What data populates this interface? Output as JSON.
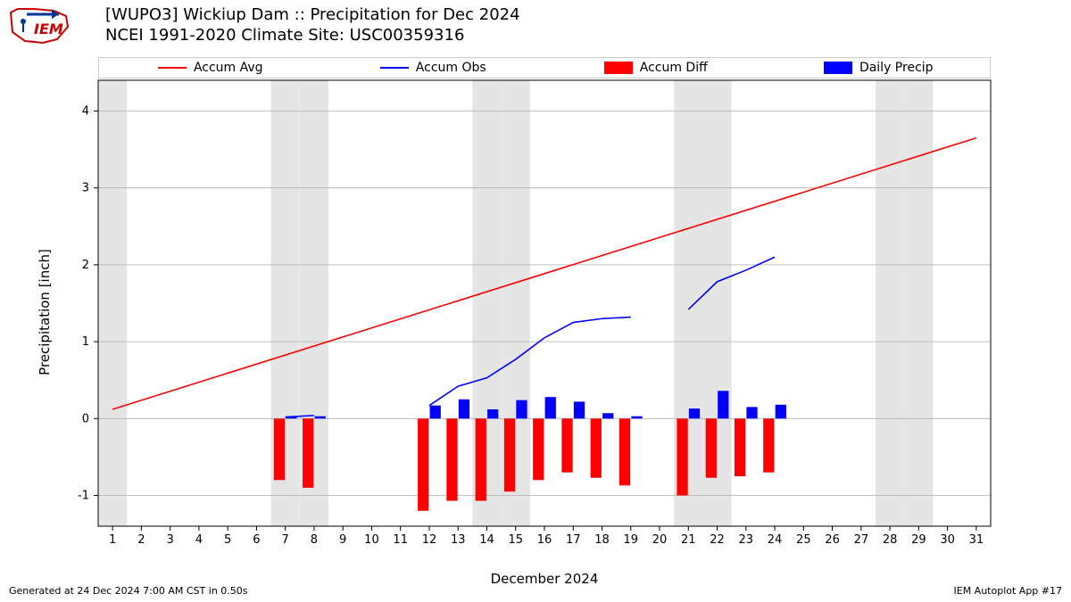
{
  "logo": {
    "text": "IEM",
    "color": "#cc0000"
  },
  "title_line1": "[WUPO3] Wickiup Dam :: Precipitation for Dec 2024",
  "title_line2": "NCEI 1991-2020 Climate Site: USC00359316",
  "footer_left": "Generated at 24 Dec 2024 7:00 AM CST in 0.50s",
  "footer_right": "IEM Autoplot App #17",
  "ylabel": "Precipitation [inch]",
  "xlabel": "December 2024",
  "legend": {
    "avg": {
      "label": "Accum Avg",
      "color": "#ff0000",
      "type": "line"
    },
    "obs": {
      "label": "Accum Obs",
      "color": "#0000ff",
      "type": "line"
    },
    "diff": {
      "label": "Accum Diff",
      "color": "#ff0000",
      "type": "patch"
    },
    "daily": {
      "label": "Daily Precip",
      "color": "#0000ff",
      "type": "patch"
    }
  },
  "chart": {
    "xlim": [
      0.5,
      31.5
    ],
    "ylim": [
      -1.4,
      4.4
    ],
    "xticks": [
      1,
      2,
      3,
      4,
      5,
      6,
      7,
      8,
      9,
      10,
      11,
      12,
      13,
      14,
      15,
      16,
      17,
      18,
      19,
      20,
      21,
      22,
      23,
      24,
      25,
      26,
      27,
      28,
      29,
      30,
      31
    ],
    "yticks": [
      -1,
      0,
      1,
      2,
      3,
      4
    ],
    "grid_color": "#b0b0b0",
    "grid_width": 0.8,
    "weekend_fill": "#e5e5e5",
    "weekend_days": [
      1,
      7,
      8,
      14,
      15,
      21,
      22,
      28,
      29
    ],
    "tick_fontsize": 13,
    "accum_avg": {
      "color": "#ff0000",
      "width": 1.6,
      "x": [
        1,
        31
      ],
      "y": [
        0.12,
        3.65
      ]
    },
    "accum_obs": {
      "color": "#0000ff",
      "width": 1.6,
      "segments": [
        {
          "x": [
            7,
            8
          ],
          "y": [
            0.02,
            0.04
          ]
        },
        {
          "x": [
            12,
            13,
            14,
            15,
            16,
            17,
            18,
            19
          ],
          "y": [
            0.17,
            0.42,
            0.53,
            0.77,
            1.05,
            1.25,
            1.3,
            1.32
          ]
        },
        {
          "x": [
            21,
            22,
            23,
            24
          ],
          "y": [
            1.42,
            1.78,
            1.93,
            2.1
          ]
        }
      ]
    },
    "bars_diff": {
      "color": "#ff0000",
      "width": 0.38,
      "data": [
        {
          "x": 7,
          "y": -0.8
        },
        {
          "x": 8,
          "y": -0.9
        },
        {
          "x": 12,
          "y": -1.2
        },
        {
          "x": 13,
          "y": -1.07
        },
        {
          "x": 14,
          "y": -1.07
        },
        {
          "x": 15,
          "y": -0.95
        },
        {
          "x": 16,
          "y": -0.8
        },
        {
          "x": 17,
          "y": -0.7
        },
        {
          "x": 18,
          "y": -0.77
        },
        {
          "x": 19,
          "y": -0.87
        },
        {
          "x": 21,
          "y": -1.0
        },
        {
          "x": 22,
          "y": -0.77
        },
        {
          "x": 23,
          "y": -0.75
        },
        {
          "x": 24,
          "y": -0.7
        }
      ]
    },
    "bars_daily": {
      "color": "#0000ff",
      "width": 0.38,
      "data": [
        {
          "x": 7,
          "y": 0.02
        },
        {
          "x": 8,
          "y": 0.03
        },
        {
          "x": 12,
          "y": 0.17
        },
        {
          "x": 13,
          "y": 0.25
        },
        {
          "x": 14,
          "y": 0.12
        },
        {
          "x": 15,
          "y": 0.24
        },
        {
          "x": 16,
          "y": 0.28
        },
        {
          "x": 17,
          "y": 0.22
        },
        {
          "x": 18,
          "y": 0.07
        },
        {
          "x": 19,
          "y": 0.03
        },
        {
          "x": 21,
          "y": 0.13
        },
        {
          "x": 22,
          "y": 0.36
        },
        {
          "x": 23,
          "y": 0.15
        },
        {
          "x": 24,
          "y": 0.18
        }
      ]
    }
  }
}
